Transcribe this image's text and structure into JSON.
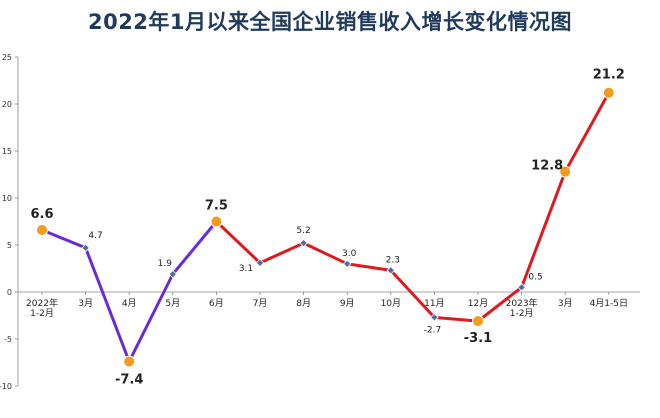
{
  "chart_data": {
    "type": "line",
    "title": "2022年1月以来全国企业销售收入增长变化情况图",
    "xlabel": "",
    "ylabel": "",
    "ylim": [
      -10,
      25
    ],
    "yticks": [
      25,
      20,
      15,
      10,
      5,
      0,
      -5,
      -10
    ],
    "grid": false,
    "categories": [
      "2022年\n1-2月",
      "3月",
      "4月",
      "5月",
      "6月",
      "7月",
      "8月",
      "9月",
      "10月",
      "11月",
      "12月",
      "2023年\n1-2月",
      "3月",
      "4月1-5日"
    ],
    "values": [
      6.6,
      4.7,
      -7.4,
      1.9,
      7.5,
      3.1,
      5.2,
      3.0,
      2.3,
      -2.7,
      -3.1,
      0.5,
      12.8,
      21.2
    ],
    "value_labels": [
      "6.6",
      "4.7",
      "-7.4",
      "1.9",
      "7.5",
      "3.1",
      "5.2",
      "3.0",
      "2.3",
      "-2.7",
      "-3.1",
      "0.5",
      "12.8",
      "21.2"
    ],
    "highlight_points": [
      0,
      2,
      4,
      10,
      12,
      13
    ],
    "segment_colors": {
      "first_segment": "#6a2bd6",
      "second_segment": "#e0191f"
    },
    "color_split_index": 4,
    "marker_colors": {
      "highlight": "#f29b1d",
      "normal": "#4a6fa5"
    }
  }
}
